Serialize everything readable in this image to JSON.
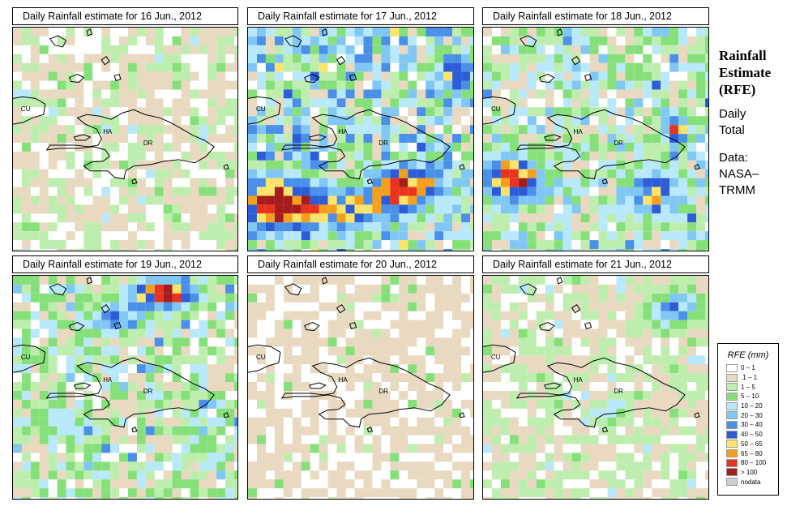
{
  "panels": [
    {
      "title": "Daily Rainfall estimate for  16 Jun., 2012",
      "intensity": 0.35,
      "storm": "none"
    },
    {
      "title": "Daily Rainfall estimate for  17 Jun., 2012",
      "intensity": 1.0,
      "storm": "south-band"
    },
    {
      "title": "Daily Rainfall estimate for  18 Jun., 2012",
      "intensity": 0.8,
      "storm": "southwest-and-east"
    },
    {
      "title": "Daily Rainfall estimate for  19 Jun., 2012",
      "intensity": 0.7,
      "storm": "north-band"
    },
    {
      "title": "Daily Rainfall estimate for  20 Jun., 2012",
      "intensity": 0.25,
      "storm": "none"
    },
    {
      "title": "Daily Rainfall estimate for  21 Jun., 2012",
      "intensity": 0.4,
      "storm": "northeast"
    }
  ],
  "map_labels": {
    "cuba": "CU",
    "haiti": "HA",
    "dominican_republic": "DR"
  },
  "sidebar": {
    "title_lines": [
      "Rainfall",
      "Estimate",
      "(RFE)"
    ],
    "subtitle_lines": [
      "Daily",
      "Total"
    ],
    "source_lines": [
      "Data:",
      "NASA–",
      "TRMM"
    ]
  },
  "legend": {
    "title": "RFE (mm)",
    "items": [
      {
        "label": "0 – 1",
        "color": "#ffffff"
      },
      {
        "label": ".1 – 1",
        "color": "#e8d9c0"
      },
      {
        "label": "1 – 5",
        "color": "#bdeeae"
      },
      {
        "label": "5 – 10",
        "color": "#86e07a"
      },
      {
        "label": "10 – 20",
        "color": "#b8e9fb"
      },
      {
        "label": "20 – 30",
        "color": "#80c7f4"
      },
      {
        "label": "30 – 40",
        "color": "#4a90e8"
      },
      {
        "label": "40 – 50",
        "color": "#2d5dd6"
      },
      {
        "label": "50 – 65",
        "color": "#fde46a"
      },
      {
        "label": "65 – 80",
        "color": "#f5a01c"
      },
      {
        "label": "80 – 100",
        "color": "#e8341e"
      },
      {
        "label": "> 100",
        "color": "#a51c1c"
      },
      {
        "label": "nodata",
        "color": "#cfcfcf"
      }
    ]
  }
}
